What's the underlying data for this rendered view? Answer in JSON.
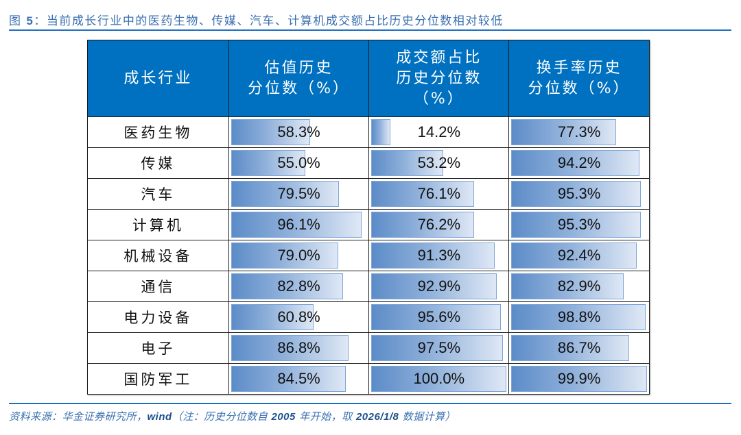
{
  "figure": {
    "label": "图",
    "number": "5",
    "separator": "：",
    "title_text": "当前成长行业中的医药生物、传媒、汽车、计算机成交额占比历史分位数相对较低"
  },
  "table": {
    "headers": [
      {
        "lines": [
          "成长行业"
        ]
      },
      {
        "lines": [
          "估值历史",
          "分位数（%）"
        ]
      },
      {
        "lines": [
          "成交额占比",
          "历史分位数",
          "（%）"
        ]
      },
      {
        "lines": [
          "换手率历史",
          "分位数（%）"
        ]
      }
    ],
    "rows": [
      {
        "industry": "医药生物",
        "valuation": "58.3%",
        "turnover_share": "14.2%",
        "turnover_rate": "77.3%"
      },
      {
        "industry": "传媒",
        "valuation": "55.0%",
        "turnover_share": "53.2%",
        "turnover_rate": "94.2%"
      },
      {
        "industry": "汽车",
        "valuation": "79.5%",
        "turnover_share": "76.1%",
        "turnover_rate": "95.3%"
      },
      {
        "industry": "计算机",
        "valuation": "96.1%",
        "turnover_share": "76.2%",
        "turnover_rate": "95.3%"
      },
      {
        "industry": "机械设备",
        "valuation": "79.0%",
        "turnover_share": "91.3%",
        "turnover_rate": "92.4%"
      },
      {
        "industry": "通信",
        "valuation": "82.8%",
        "turnover_share": "92.9%",
        "turnover_rate": "82.9%"
      },
      {
        "industry": "电力设备",
        "valuation": "60.8%",
        "turnover_share": "95.6%",
        "turnover_rate": "98.8%"
      },
      {
        "industry": "电子",
        "valuation": "86.8%",
        "turnover_share": "97.5%",
        "turnover_rate": "86.7%"
      },
      {
        "industry": "国防军工",
        "valuation": "84.5%",
        "turnover_share": "100.0%",
        "turnover_rate": "99.9%"
      }
    ]
  },
  "source": {
    "prefix": "资料来源：华金证券研究所，",
    "wind": "wind",
    "note_open": "（注：历史分位数自",
    "start_year": "2005",
    "note_mid": "年开始，取",
    "date": "2026/1/8",
    "note_close": "数据计算）"
  },
  "colors": {
    "header_bg": "#0070c0",
    "title_text": "#3a6fb0",
    "rule": "#1f6fc0",
    "bar_start": "#5c8cc8",
    "bar_end": "#dfe8f5"
  },
  "chart_data": {
    "type": "table",
    "title": "图5：当前成长行业中的医药生物、传媒、汽车、计算机成交额占比历史分位数相对较低",
    "columns": [
      "成长行业",
      "估值历史分位数（%）",
      "成交额占比历史分位数（%）",
      "换手率历史分位数（%）"
    ],
    "categories": [
      "医药生物",
      "传媒",
      "汽车",
      "计算机",
      "机械设备",
      "通信",
      "电力设备",
      "电子",
      "国防军工"
    ],
    "series": [
      {
        "name": "估值历史分位数（%）",
        "values": [
          58.3,
          55.0,
          79.5,
          96.1,
          79.0,
          82.8,
          60.8,
          86.8,
          84.5
        ]
      },
      {
        "name": "成交额占比历史分位数（%）",
        "values": [
          14.2,
          53.2,
          76.1,
          76.2,
          91.3,
          92.9,
          95.6,
          97.5,
          100.0
        ]
      },
      {
        "name": "换手率历史分位数（%）",
        "values": [
          77.3,
          94.2,
          95.3,
          95.3,
          92.4,
          82.9,
          98.8,
          86.7,
          99.9
        ]
      }
    ],
    "data_bars": true,
    "value_range": [
      0,
      100
    ],
    "source_note": "资料来源：华金证券研究所，wind（注：历史分位数自2005年开始，取2026/1/8数据计算）"
  }
}
